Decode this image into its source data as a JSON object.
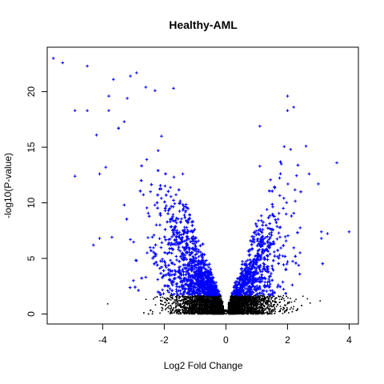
{
  "chart_data": {
    "type": "scatter",
    "title": "Healthy-AML",
    "xlabel": "Log2 Fold Change",
    "ylabel": "-log10(P-value)",
    "xlim": [
      -5.8,
      4.3
    ],
    "ylim": [
      -0.9,
      24.0
    ],
    "x_ticks": [
      -4,
      -2,
      0,
      2,
      4
    ],
    "y_ticks": [
      0,
      5,
      10,
      15,
      20
    ],
    "grid": false,
    "legend": "none",
    "significance_threshold_neg_log10_p": 1.7,
    "colors": {
      "significant": "#0000ff",
      "not_significant": "#000000"
    },
    "marker": {
      "significant": "plus",
      "not_significant": "dot"
    },
    "series": [
      {
        "points": [
          [
            -5.6,
            23.0
          ],
          [
            -5.3,
            22.6
          ],
          [
            -4.5,
            22.3
          ],
          [
            -4.9,
            18.3
          ],
          [
            -4.5,
            18.3
          ],
          [
            -4.2,
            16.1
          ],
          [
            -4.9,
            12.4
          ],
          [
            -4.3,
            6.2
          ],
          [
            -4.1,
            6.8
          ],
          [
            -3.7,
            6.9
          ],
          [
            -4.1,
            12.6
          ],
          [
            -3.9,
            13.2
          ],
          [
            -3.8,
            19.6
          ],
          [
            -3.8,
            18.3
          ],
          [
            -3.3,
            17.3
          ],
          [
            -3.2,
            19.4
          ],
          [
            -3.1,
            21.4
          ],
          [
            -2.9,
            21.7
          ],
          [
            -2.6,
            20.4
          ],
          [
            -2.3,
            20.1
          ],
          [
            -1.7,
            20.3
          ],
          [
            -3.3,
            9.8
          ],
          [
            -3.1,
            6.7
          ],
          [
            -2.9,
            4.8
          ],
          [
            -3.0,
            3.0
          ],
          [
            -2.6,
            3.3
          ],
          [
            -2.2,
            14.7
          ],
          [
            -1.4,
            12.6
          ],
          [
            3.6,
            13.6
          ],
          [
            4.0,
            7.4
          ],
          [
            3.1,
            7.4
          ],
          [
            3.1,
            6.8
          ],
          [
            3.0,
            11.7
          ],
          [
            2.7,
            12.6
          ],
          [
            1.1,
            16.9
          ],
          [
            2.0,
            19.6
          ],
          [
            2.0,
            18.3
          ],
          [
            2.2,
            18.6
          ],
          [
            2.6,
            15.1
          ],
          [
            2.1,
            14.8
          ],
          [
            1.8,
            13.5
          ],
          [
            1.1,
            13.3
          ]
        ]
      },
      {
        "points": [
          [
            -1.6,
            1.4
          ],
          [
            -1.2,
            0.9
          ],
          [
            -0.9,
            0.5
          ],
          [
            -0.6,
            0.3
          ],
          [
            -0.4,
            0.6
          ],
          [
            0.4,
            0.6
          ],
          [
            0.6,
            0.3
          ],
          [
            0.9,
            0.5
          ],
          [
            1.2,
            0.9
          ],
          [
            1.6,
            1.4
          ],
          [
            -1.9,
            1.2
          ],
          [
            1.9,
            1.2
          ],
          [
            2.5,
            1.6
          ],
          [
            -2.3,
            1.5
          ]
        ]
      }
    ]
  }
}
